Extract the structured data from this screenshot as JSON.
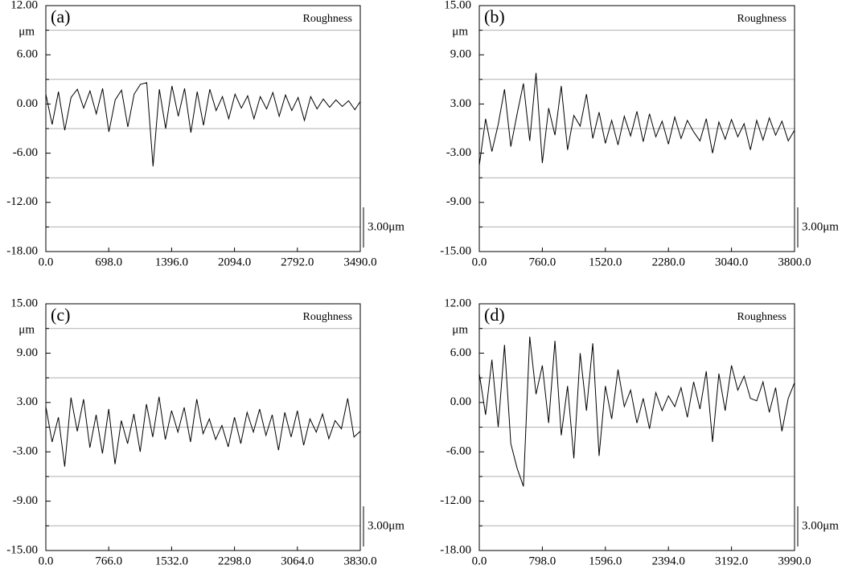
{
  "chart_data": [
    {
      "type": "line",
      "panel_label": "(a)",
      "ylabel": "μm",
      "scale_label": "3.00μm",
      "series": [
        {
          "name": "Roughness",
          "color": "#000000",
          "x": [
            0,
            70,
            140,
            210,
            280,
            350,
            420,
            490,
            560,
            630,
            700,
            770,
            840,
            910,
            980,
            1050,
            1120,
            1190,
            1260,
            1330,
            1400,
            1470,
            1540,
            1610,
            1680,
            1750,
            1820,
            1890,
            1960,
            2030,
            2100,
            2170,
            2240,
            2310,
            2380,
            2450,
            2520,
            2590,
            2660,
            2730,
            2800,
            2870,
            2940,
            3010,
            3080,
            3150,
            3220,
            3290,
            3360,
            3430,
            3490
          ],
          "values": [
            1.2,
            -2.5,
            1.5,
            -3.2,
            0.8,
            1.8,
            -0.5,
            1.6,
            -1.2,
            1.9,
            -3.4,
            0.5,
            1.7,
            -2.8,
            1.2,
            2.4,
            2.6,
            -7.6,
            1.8,
            -3.0,
            2.2,
            -1.5,
            1.9,
            -3.5,
            1.5,
            -2.6,
            1.8,
            -0.8,
            0.9,
            -1.8,
            1.2,
            -0.5,
            1.0,
            -1.8,
            0.9,
            -0.6,
            1.4,
            -1.5,
            1.1,
            -0.8,
            0.8,
            -2.0,
            0.9,
            -0.6,
            0.6,
            -0.4,
            0.5,
            -0.3,
            0.4,
            -0.7,
            0.3
          ]
        }
      ],
      "xlim": [
        0,
        3490
      ],
      "xticks": [
        {
          "value": 0,
          "label": "0.0"
        },
        {
          "value": 698,
          "label": "698.0"
        },
        {
          "value": 1396,
          "label": "1396.0"
        },
        {
          "value": 2094,
          "label": "2094.0"
        },
        {
          "value": 2792,
          "label": "2792.0"
        },
        {
          "value": 3490,
          "label": "3490.0"
        }
      ],
      "ylim": [
        -18,
        12
      ],
      "yticks": [
        {
          "value": 12,
          "label": "12.00"
        },
        {
          "value": 6,
          "label": "6.00"
        },
        {
          "value": 0,
          "label": "0.00"
        },
        {
          "value": -6,
          "label": "-6.00"
        },
        {
          "value": -12,
          "label": "-12.00"
        },
        {
          "value": -18,
          "label": "-18.00"
        }
      ],
      "grid_lines": [
        9,
        3,
        -3,
        -9,
        -15
      ]
    },
    {
      "type": "line",
      "panel_label": "(b)",
      "ylabel": "μm",
      "scale_label": "3.00μm",
      "series": [
        {
          "name": "Roughness",
          "color": "#000000",
          "x": [
            0,
            76,
            152,
            228,
            304,
            380,
            456,
            532,
            608,
            684,
            760,
            836,
            912,
            988,
            1064,
            1140,
            1216,
            1292,
            1368,
            1444,
            1520,
            1596,
            1672,
            1748,
            1824,
            1900,
            1976,
            2052,
            2128,
            2204,
            2280,
            2356,
            2432,
            2508,
            2584,
            2660,
            2736,
            2812,
            2888,
            2964,
            3040,
            3116,
            3192,
            3268,
            3344,
            3420,
            3496,
            3572,
            3648,
            3724,
            3800
          ],
          "values": [
            -4.5,
            1.2,
            -2.8,
            0.5,
            4.8,
            -2.2,
            1.8,
            5.5,
            -1.5,
            6.8,
            -4.2,
            2.5,
            -0.8,
            5.2,
            -2.6,
            1.6,
            0.3,
            4.2,
            -1.2,
            2.0,
            -1.8,
            1.0,
            -2.0,
            1.5,
            -0.9,
            2.1,
            -1.6,
            1.8,
            -1.0,
            0.9,
            -1.9,
            1.4,
            -1.2,
            1.0,
            -0.4,
            -1.5,
            1.2,
            -3.0,
            0.8,
            -1.3,
            1.1,
            -1.0,
            0.6,
            -2.6,
            1.0,
            -1.4,
            1.3,
            -0.8,
            0.9,
            -1.5,
            -0.2
          ]
        }
      ],
      "xlim": [
        0,
        3800
      ],
      "xticks": [
        {
          "value": 0,
          "label": "0.0"
        },
        {
          "value": 760,
          "label": "760.0"
        },
        {
          "value": 1520,
          "label": "1520.0"
        },
        {
          "value": 2280,
          "label": "2280.0"
        },
        {
          "value": 3040,
          "label": "3040.0"
        },
        {
          "value": 3800,
          "label": "3800.0"
        }
      ],
      "ylim": [
        -15,
        15
      ],
      "yticks": [
        {
          "value": 15,
          "label": "15.00"
        },
        {
          "value": 9,
          "label": "9.00"
        },
        {
          "value": 3,
          "label": "3.00"
        },
        {
          "value": -3,
          "label": "-3.00"
        },
        {
          "value": -9,
          "label": "-9.00"
        },
        {
          "value": -15,
          "label": "-15.00"
        }
      ],
      "grid_lines": [
        12,
        6,
        0,
        -6,
        -12
      ]
    },
    {
      "type": "line",
      "panel_label": "(c)",
      "ylabel": "μm",
      "scale_label": "3.00μm",
      "series": [
        {
          "name": "Roughness",
          "color": "#000000",
          "x": [
            0,
            76.6,
            153.2,
            229.8,
            306.4,
            383,
            459.6,
            536.2,
            612.8,
            689.4,
            766,
            842.6,
            919.2,
            995.8,
            1072.4,
            1149,
            1225.6,
            1302.2,
            1378.8,
            1455.4,
            1532,
            1608.6,
            1685.2,
            1761.8,
            1838.4,
            1915,
            1991.6,
            2068.2,
            2144.8,
            2221.4,
            2298,
            2374.6,
            2451.2,
            2527.8,
            2604.4,
            2681,
            2757.6,
            2834.2,
            2910.8,
            2987.4,
            3064,
            3140.6,
            3217.2,
            3293.8,
            3370.4,
            3447,
            3523.6,
            3600.2,
            3676.8,
            3753.4,
            3830
          ],
          "values": [
            2.5,
            -1.8,
            1.2,
            -4.8,
            3.6,
            -0.5,
            3.4,
            -2.5,
            1.5,
            -3.2,
            2.2,
            -4.5,
            0.8,
            -2.0,
            1.6,
            -3.0,
            2.8,
            -1.2,
            3.7,
            -1.5,
            2.0,
            -0.6,
            2.4,
            -1.8,
            3.4,
            -0.8,
            1.0,
            -1.5,
            0.2,
            -2.4,
            1.2,
            -2.0,
            1.8,
            -0.6,
            2.2,
            -1.0,
            1.5,
            -2.8,
            1.8,
            -1.2,
            2.0,
            -2.2,
            1.0,
            -0.6,
            1.6,
            -1.4,
            0.8,
            -0.2,
            3.5,
            -1.2,
            -0.5
          ]
        }
      ],
      "xlim": [
        0,
        3830
      ],
      "xticks": [
        {
          "value": 0,
          "label": "0.0"
        },
        {
          "value": 766,
          "label": "766.0"
        },
        {
          "value": 1532,
          "label": "1532.0"
        },
        {
          "value": 2298,
          "label": "2298.0"
        },
        {
          "value": 3064,
          "label": "3064.0"
        },
        {
          "value": 3830,
          "label": "3830.0"
        }
      ],
      "ylim": [
        -15,
        15
      ],
      "yticks": [
        {
          "value": 15,
          "label": "15.00"
        },
        {
          "value": 9,
          "label": "9.00"
        },
        {
          "value": 3,
          "label": "3.00"
        },
        {
          "value": -3,
          "label": "-3.00"
        },
        {
          "value": -9,
          "label": "-9.00"
        },
        {
          "value": -15,
          "label": "-15.00"
        }
      ],
      "grid_lines": [
        12,
        6,
        0,
        -6,
        -12
      ]
    },
    {
      "type": "line",
      "panel_label": "(d)",
      "ylabel": "μm",
      "scale_label": "3.00μm",
      "series": [
        {
          "name": "Roughness",
          "color": "#000000",
          "x": [
            0,
            79.8,
            159.6,
            239.4,
            319.2,
            399,
            478.8,
            558.6,
            638.4,
            718.2,
            798,
            877.8,
            957.6,
            1037.4,
            1117.2,
            1197,
            1276.8,
            1356.6,
            1436.4,
            1516.2,
            1596,
            1675.8,
            1755.6,
            1835.4,
            1915.2,
            1995,
            2074.8,
            2154.6,
            2234.4,
            2314.2,
            2394,
            2473.8,
            2553.6,
            2633.4,
            2713.2,
            2793,
            2872.8,
            2952.6,
            3032.4,
            3112.2,
            3192,
            3271.8,
            3351.6,
            3431.4,
            3511.2,
            3591,
            3670.8,
            3750.6,
            3830.4,
            3910.2,
            3990
          ],
          "values": [
            3.5,
            -1.5,
            5.2,
            -3.0,
            7.0,
            -5.0,
            -8.0,
            -10.2,
            8.0,
            1.0,
            4.5,
            -2.5,
            7.5,
            -4.0,
            2.0,
            -6.8,
            6.0,
            -1.0,
            7.2,
            -6.5,
            2.0,
            -2.0,
            4.0,
            -0.5,
            1.5,
            -2.5,
            0.5,
            -3.2,
            1.2,
            -1.0,
            0.8,
            -0.5,
            1.8,
            -1.8,
            2.5,
            -0.8,
            3.8,
            -4.8,
            3.5,
            -1.0,
            4.5,
            1.5,
            3.2,
            0.5,
            0.2,
            2.5,
            -1.2,
            1.8,
            -3.5,
            0.5,
            2.4
          ]
        }
      ],
      "xlim": [
        0,
        3990
      ],
      "xticks": [
        {
          "value": 0,
          "label": "0.0"
        },
        {
          "value": 798,
          "label": "798.0"
        },
        {
          "value": 1596,
          "label": "1596.0"
        },
        {
          "value": 2394,
          "label": "2394.0"
        },
        {
          "value": 3192,
          "label": "3192.0"
        },
        {
          "value": 3990,
          "label": "3990.0"
        }
      ],
      "ylim": [
        -18,
        12
      ],
      "yticks": [
        {
          "value": 12,
          "label": "12.00"
        },
        {
          "value": 6,
          "label": "6.00"
        },
        {
          "value": 0,
          "label": "0.00"
        },
        {
          "value": -6,
          "label": "-6.00"
        },
        {
          "value": -12,
          "label": "-12.00"
        },
        {
          "value": -18,
          "label": "-18.00"
        }
      ],
      "grid_lines": [
        9,
        3,
        -3,
        -9,
        -15
      ]
    }
  ]
}
